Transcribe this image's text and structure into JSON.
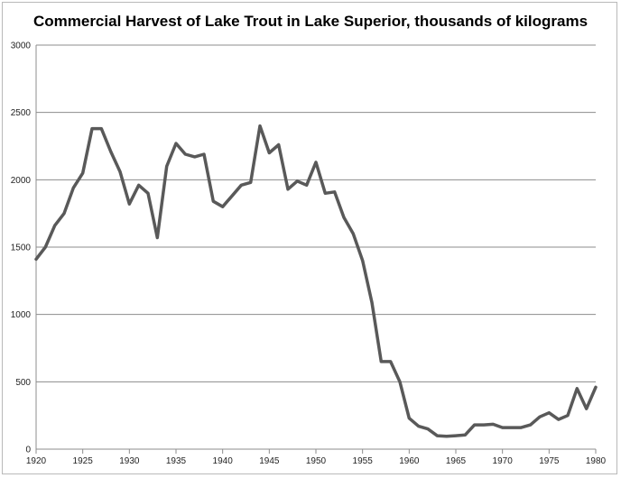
{
  "chart_data": {
    "type": "line",
    "title": "Commercial Harvest of Lake Trout in Lake Superior, thousands of kilograms",
    "xlabel": "",
    "ylabel": "",
    "xlim": [
      1920,
      1980
    ],
    "ylim": [
      0,
      3000
    ],
    "x_ticks": [
      1920,
      1925,
      1930,
      1935,
      1940,
      1945,
      1950,
      1955,
      1960,
      1965,
      1970,
      1975,
      1980
    ],
    "y_ticks": [
      0,
      500,
      1000,
      1500,
      2000,
      2500,
      3000
    ],
    "grid": "horizontal",
    "legend": "none",
    "series": [
      {
        "color": "#595959",
        "x": [
          1920,
          1921,
          1922,
          1923,
          1924,
          1925,
          1926,
          1927,
          1928,
          1929,
          1930,
          1931,
          1932,
          1933,
          1934,
          1935,
          1936,
          1937,
          1938,
          1939,
          1940,
          1941,
          1942,
          1943,
          1944,
          1945,
          1946,
          1947,
          1948,
          1949,
          1950,
          1951,
          1952,
          1953,
          1954,
          1955,
          1956,
          1957,
          1958,
          1959,
          1960,
          1961,
          1962,
          1963,
          1964,
          1965,
          1966,
          1967,
          1968,
          1969,
          1970,
          1971,
          1972,
          1973,
          1974,
          1975,
          1976,
          1977,
          1978,
          1979,
          1980
        ],
        "values": [
          1410,
          1500,
          1660,
          1750,
          1940,
          2050,
          2380,
          2380,
          2210,
          2060,
          1820,
          1960,
          1900,
          1570,
          2100,
          2270,
          2190,
          2170,
          2190,
          1840,
          1800,
          1880,
          1960,
          1980,
          2400,
          2200,
          2260,
          1930,
          1990,
          1960,
          2130,
          1900,
          1910,
          1720,
          1600,
          1400,
          1090,
          650,
          650,
          500,
          230,
          170,
          150,
          100,
          95,
          100,
          105,
          180,
          180,
          185,
          160,
          160,
          160,
          180,
          240,
          270,
          220,
          250,
          450,
          300,
          460
        ]
      }
    ]
  }
}
